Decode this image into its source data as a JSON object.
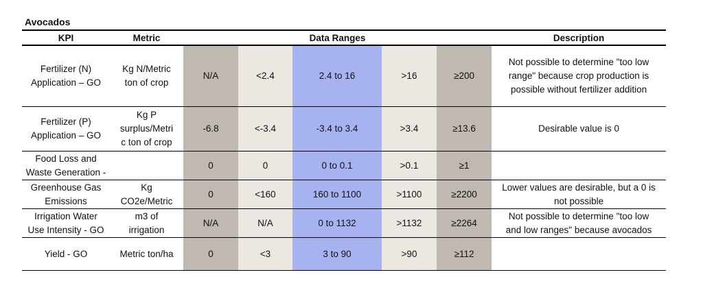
{
  "title": "Avocados",
  "headers": {
    "kpi": "KPI",
    "metric": "Metric",
    "data_ranges": "Data Ranges",
    "description": "Description"
  },
  "rows": [
    {
      "kpi": [
        "Fertilizer (N)",
        "Application – GO"
      ],
      "metric": [
        "Kg N/Metric",
        "ton of crop"
      ],
      "ranges": [
        "N/A",
        "<2.4",
        "2.4 to 16",
        ">16",
        "≥200"
      ],
      "description": [
        "Not possible to determine \"too low",
        "range\" because crop production is",
        "possible without fertilizer addition"
      ]
    },
    {
      "kpi": [
        "Fertilizer (P)",
        "Application – GO"
      ],
      "metric": [
        "Kg P",
        "surplus/Metri",
        "c ton of crop"
      ],
      "ranges": [
        "-6.8",
        "<-3.4",
        "-3.4 to 3.4",
        ">3.4",
        "≥13.6"
      ],
      "description": [
        "Desirable value is 0"
      ]
    },
    {
      "kpi": [
        "Food Loss and",
        "Waste Generation -"
      ],
      "metric": [],
      "ranges": [
        "0",
        "0",
        "0 to 0.1",
        ">0.1",
        "≥1"
      ],
      "description": []
    },
    {
      "kpi": [
        "Greenhouse Gas",
        "Emissions"
      ],
      "metric": [
        "Kg",
        "CO2e/Metric"
      ],
      "ranges": [
        "0",
        "<160",
        "160 to 1100",
        ">1100",
        "≥2200"
      ],
      "description": [
        "Lower values are desirable, but a 0 is",
        "not possible"
      ]
    },
    {
      "kpi": [
        "Irrigation Water",
        "Use Intensity - GO"
      ],
      "metric": [
        "m3 of",
        "irrigation"
      ],
      "ranges": [
        "N/A",
        "N/A",
        "0 to 1132",
        ">1132",
        "≥2264"
      ],
      "description": [
        "Not possible to determine \"too low",
        "and low ranges\" because avocados"
      ]
    },
    {
      "kpi": [
        "Yield - GO"
      ],
      "metric": [
        "Metric ton/ha"
      ],
      "ranges": [
        "0",
        "<3",
        "3  to 90",
        ">90",
        "≥112"
      ],
      "description": []
    }
  ],
  "colors": {
    "range_outer": "#bfb9b1",
    "range_inner": "#ede7e1",
    "range_optimal": "#a7b3f0"
  }
}
